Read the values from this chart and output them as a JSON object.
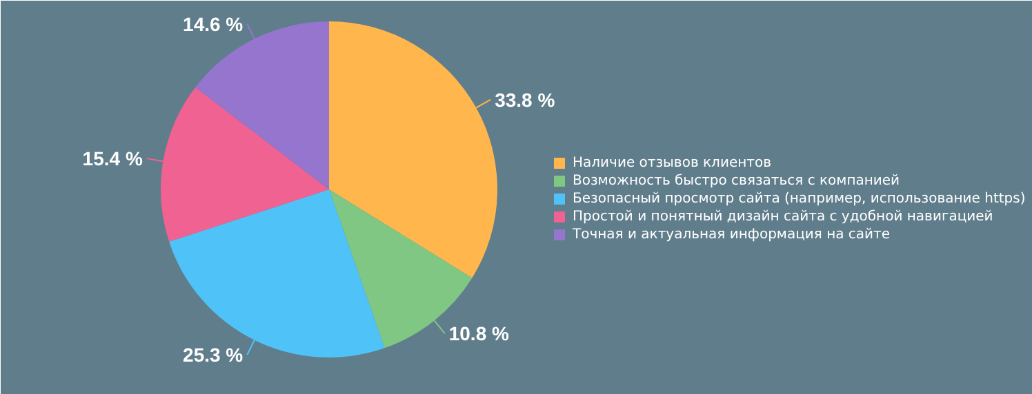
{
  "chart_data": {
    "type": "pie",
    "categories": [
      "Наличие отзывов клиентов",
      "Возможность быстро связаться с компанией",
      "Безопасный просмотр сайта (например, использование https)",
      "Простой и понятный дизайн сайта с удобной навигацией",
      "Точная и актуальная информация на сайте"
    ],
    "values": [
      33.8,
      10.8,
      25.3,
      15.4,
      14.6
    ],
    "colors": [
      "#ffb74d",
      "#81c784",
      "#4fc3f7",
      "#f06292",
      "#9575cd"
    ],
    "value_labels": [
      "33.8 %",
      "10.8 %",
      "25.3 %",
      "15.4 %",
      "14.6 %"
    ],
    "legend": "right"
  }
}
